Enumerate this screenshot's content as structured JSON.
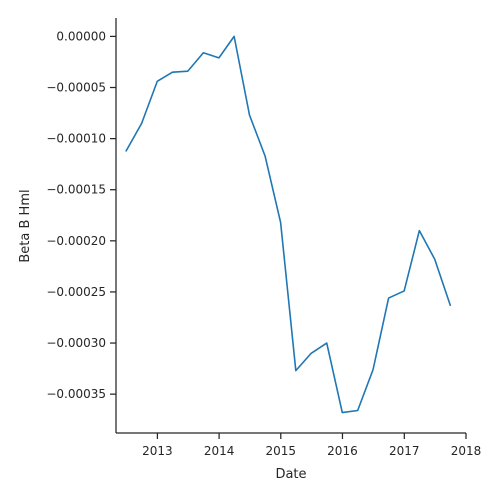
{
  "chart_data": {
    "type": "line",
    "title": "",
    "xlabel": "Date",
    "ylabel": "Beta B Hml",
    "xlim": [
      "2012-05-01",
      "2018-01-01"
    ],
    "ylim": [
      -0.000388,
      1.8e-05
    ],
    "grid": false,
    "legend": "none",
    "x_ticks": [
      "2013-01-01",
      "2014-01-01",
      "2015-01-01",
      "2016-01-01",
      "2017-01-01",
      "2018-01-01"
    ],
    "x_tick_labels": [
      "2013",
      "2014",
      "2015",
      "2016",
      "2017",
      "2018"
    ],
    "y_ticks": [
      0.0,
      -5e-05,
      -0.0001,
      -0.00015,
      -0.0002,
      -0.00025,
      -0.0003,
      -0.00035
    ],
    "y_tick_labels": [
      "0.00000",
      "−0.00005",
      "−0.00010",
      "−0.00015",
      "−0.00020",
      "−0.00025",
      "−0.00030",
      "−0.00035"
    ],
    "series": [
      {
        "color": "#1f77b4",
        "x": [
          "2012-06-30",
          "2012-09-30",
          "2012-12-31",
          "2013-03-31",
          "2013-06-30",
          "2013-09-30",
          "2013-12-31",
          "2014-03-31",
          "2014-06-30",
          "2014-09-30",
          "2014-12-31",
          "2015-03-31",
          "2015-06-30",
          "2015-09-30",
          "2015-12-31",
          "2016-03-31",
          "2016-06-30",
          "2016-09-30",
          "2016-12-31",
          "2017-03-31",
          "2017-06-30",
          "2017-09-30"
        ],
        "y": [
          -0.000112,
          -8.5e-05,
          -4.4e-05,
          -3.5e-05,
          -3.4e-05,
          -1.6e-05,
          -2.1e-05,
          0.0,
          -7.7e-05,
          -0.000117,
          -0.000182,
          -0.000327,
          -0.00031,
          -0.0003,
          -0.000368,
          -0.000366,
          -0.000326,
          -0.000256,
          -0.000249,
          -0.00019,
          -0.000218,
          -0.000263
        ]
      }
    ]
  }
}
